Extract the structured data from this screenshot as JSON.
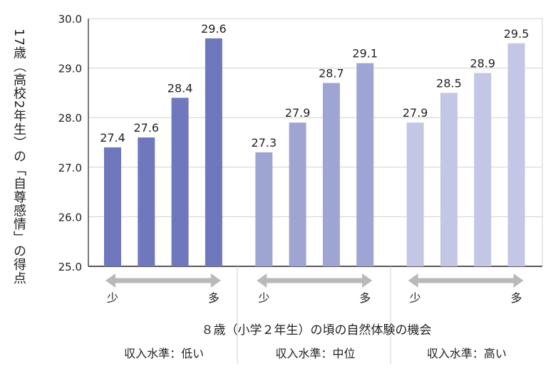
{
  "chart_data": {
    "type": "bar",
    "ylabel": "17歳（高校2年生）の「自尊感情」の得点",
    "xlabel": "８歳（小学２年生）の頃の自然体験の機会",
    "ylim": [
      25.0,
      30.0
    ],
    "yticks": [
      "25.0",
      "26.0",
      "27.0",
      "28.0",
      "29.0",
      "30.0"
    ],
    "grid": true,
    "groups": [
      {
        "name": "収入水準：低い",
        "arrow_left": "少",
        "arrow_right": "多",
        "color": "#6f78bd",
        "values": [
          27.4,
          27.6,
          28.4,
          29.6
        ],
        "labels": [
          "27.4",
          "27.6",
          "28.4",
          "29.6"
        ]
      },
      {
        "name": "収入水準：中位",
        "arrow_left": "少",
        "arrow_right": "多",
        "color": "#9fa5d3",
        "values": [
          27.3,
          27.9,
          28.7,
          29.1
        ],
        "labels": [
          "27.3",
          "27.9",
          "28.7",
          "29.1"
        ]
      },
      {
        "name": "収入水準：高い",
        "arrow_left": "少",
        "arrow_right": "多",
        "color": "#c3c6e5",
        "values": [
          27.9,
          28.5,
          28.9,
          29.5
        ],
        "labels": [
          "27.9",
          "28.5",
          "28.9",
          "29.5"
        ]
      }
    ]
  },
  "colors": {
    "axis": "#231f20",
    "grid": "#d0d0d0",
    "arrow": "#b9b9b9"
  }
}
